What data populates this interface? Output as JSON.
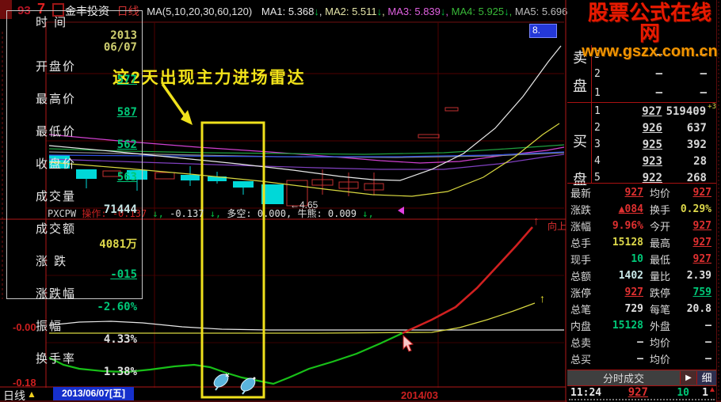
{
  "title_bar": {
    "fragment_a": "93",
    "fragment_b": "7",
    "stock_name": "金丰投资",
    "period": "日线",
    "ma_group_label": "MA(5,10,20,30,60,120)",
    "ma_items": [
      {
        "label": "MA1:",
        "value": "5.368",
        "arrow": "↓",
        "sep": ","
      },
      {
        "label": "MA2:",
        "value": "5.511",
        "arrow": "↓",
        "sep": ","
      },
      {
        "label": "MA3:",
        "value": "5.839",
        "arrow": "↓",
        "sep": ","
      },
      {
        "label": "MA4:",
        "value": "5.925",
        "arrow": "↓",
        "sep": ","
      },
      {
        "label": "MA5:",
        "value": "5.696",
        "arrow": "↓",
        "sep": ","
      }
    ]
  },
  "watermark": {
    "line1": "股票公式在线网",
    "line2": "www.gszx.com.cn"
  },
  "chart": {
    "price_axis_top_label": "8.",
    "annotation": "这2天出现主力进场雷达",
    "price_callout": "←4.65",
    "x_axis_label": "2014/03",
    "axis_zero": "-0.00",
    "axis_min": "-0.18",
    "trend_arrow_red": "↑",
    "trend_label": "向上",
    "trend_arrow_yellow": "↑"
  },
  "crosshair_panel": {
    "time_label": "时 间",
    "time_year": "2013",
    "time_date": "06/07",
    "rows": [
      {
        "label": "开盘价",
        "value": "577",
        "cls": "gu"
      },
      {
        "label": "最高价",
        "value": "587",
        "cls": "gu"
      },
      {
        "label": "最低价",
        "value": "562",
        "cls": "gu"
      },
      {
        "label": "收盘价",
        "value": "563",
        "cls": "gu"
      },
      {
        "label": "成交量",
        "value": "71444",
        "cls": "cy"
      },
      {
        "label": "成交额",
        "value": "4081万",
        "cls": "yl"
      },
      {
        "label": "涨 跌",
        "value": "-015",
        "cls": "gu"
      },
      {
        "label": "涨跌幅",
        "value": "-2.60%",
        "cls": "gr"
      },
      {
        "label": "振幅",
        "value": "4.33%",
        "cls": "wh"
      },
      {
        "label": "换手率",
        "value": "1.38%",
        "cls": "wh"
      }
    ]
  },
  "pxcpw": {
    "name": "PXCPW",
    "op_label": "操作:",
    "op_value": " -0.137",
    "op_arrow": "↓,",
    "val2": " -0.137",
    "val2_arrow": "↓,",
    "duokong": " 多空: 0.000,",
    "niuxiong": " 牛熊: 0.009",
    "niuxiong_arrow": "↓,"
  },
  "order_book": {
    "sell_label_top": "卖",
    "sell_label_bottom": "盘",
    "buy_label_top": "买",
    "buy_label_bottom": "盘",
    "sell_rows": [
      {
        "n": "3",
        "price": "—",
        "vol": "—"
      },
      {
        "n": "2",
        "price": "—",
        "vol": "—"
      },
      {
        "n": "1",
        "price": "—",
        "vol": "—"
      }
    ],
    "buy_rows": [
      {
        "n": "1",
        "price": "927",
        "vol": "519409",
        "extra": "+3"
      },
      {
        "n": "2",
        "price": "926",
        "vol": "637",
        "extra": ""
      },
      {
        "n": "3",
        "price": "925",
        "vol": "392",
        "extra": ""
      },
      {
        "n": "4",
        "price": "923",
        "vol": "28",
        "extra": ""
      },
      {
        "n": "5",
        "price": "922",
        "vol": "268",
        "extra": ""
      }
    ]
  },
  "market_info": [
    {
      "l1": "最新",
      "v1": "927",
      "c1": "ru",
      "l2": "均价",
      "v2": "927",
      "c2": "ru"
    },
    {
      "l1": "涨跌",
      "v1": "▲084",
      "c1": "ru",
      "l2": "换手",
      "v2": "0.29%",
      "c2": "yl"
    },
    {
      "l1": "涨幅",
      "v1": "9.96%",
      "c1": "rd",
      "l2": "今开",
      "v2": "927",
      "c2": "ru"
    },
    {
      "l1": "总手",
      "v1": "15128",
      "c1": "yl",
      "l2": "最高",
      "v2": "927",
      "c2": "ru"
    },
    {
      "l1": "现手",
      "v1": "10",
      "c1": "gr",
      "l2": "最低",
      "v2": "927",
      "c2": "ru"
    },
    {
      "l1": "总额",
      "v1": "1402",
      "c1": "cy",
      "l2": "量比",
      "v2": "2.39",
      "c2": "wh"
    },
    {
      "l1": "涨停",
      "v1": "927",
      "c1": "ru",
      "l2": "跌停",
      "v2": "759",
      "c2": "gu"
    },
    {
      "l1": "总笔",
      "v1": "729",
      "c1": "wh",
      "l2": "每笔",
      "v2": "20.8",
      "c2": "wh"
    },
    {
      "l1": "内盘",
      "v1": "15128",
      "c1": "gr",
      "l2": "外盘",
      "v2": "—",
      "c2": "wh"
    },
    {
      "l1": "总卖",
      "v1": "—",
      "c1": "wh",
      "l2": "均价",
      "v2": "—",
      "c2": "wh"
    },
    {
      "l1": "总买",
      "v1": "—",
      "c1": "wh",
      "l2": "均价",
      "v2": "—",
      "c2": "wh"
    }
  ],
  "tick_panel": {
    "header": "分时成交",
    "play": "▶",
    "detail": "细",
    "row": {
      "time": "11:24",
      "price": "927",
      "vol": "10",
      "count": "1",
      "arrow": "▲"
    }
  },
  "status_bar": {
    "period": "日线",
    "arrow": "▲",
    "date": "2013/06/07[五]"
  },
  "colors": {
    "up_red": "#e03030",
    "down_green": "#00c878",
    "candle_cyan": "#00d8d8",
    "highlight_yellow": "#efe11c",
    "watermark_red": "#e81a00",
    "watermark_orange": "#f29400"
  }
}
